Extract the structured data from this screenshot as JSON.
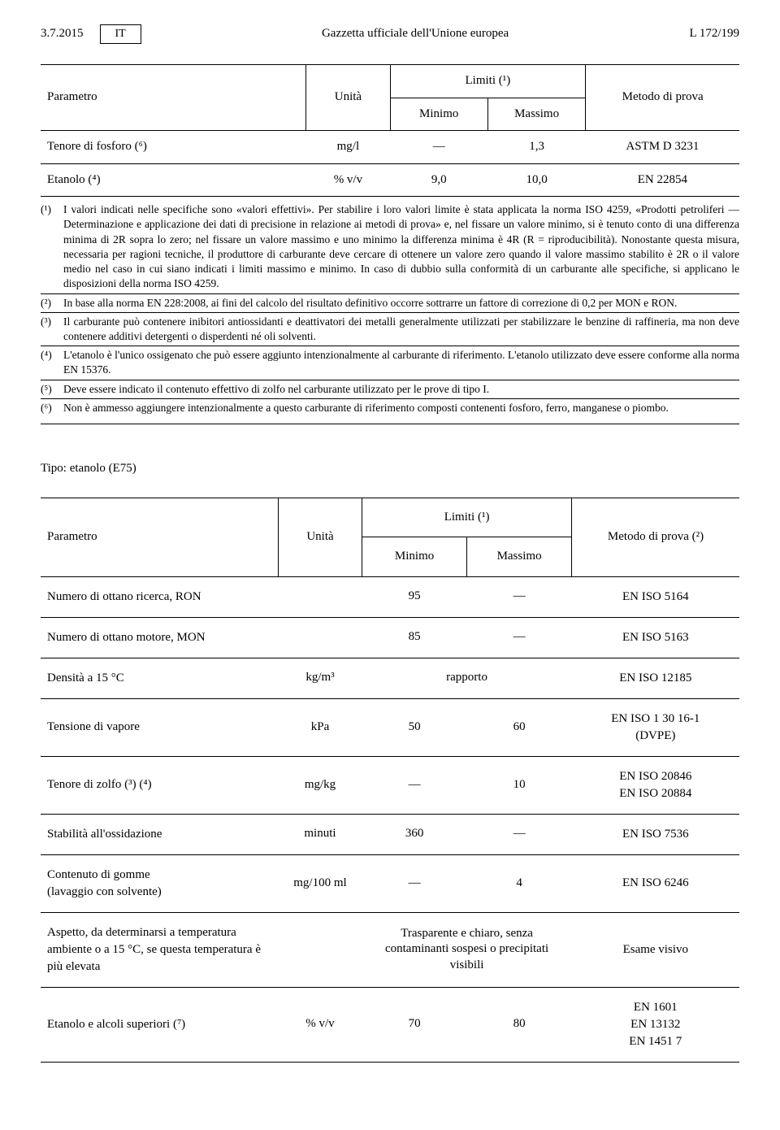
{
  "header": {
    "date": "3.7.2015",
    "lang": "IT",
    "title": "Gazzetta ufficiale dell'Unione europea",
    "page": "L 172/199"
  },
  "table1": {
    "headers": {
      "param": "Parametro",
      "unit": "Unità",
      "limits": "Limiti (¹)",
      "min": "Minimo",
      "max": "Massimo",
      "method": "Metodo di prova"
    },
    "rows": [
      {
        "param": "Tenore di fosforo (⁶)",
        "unit": "mg/l",
        "min": "—",
        "max": "1,3",
        "method": "ASTM D 3231"
      },
      {
        "param": "Etanolo (⁴)",
        "unit": "% v/v",
        "min": "9,0",
        "max": "10,0",
        "method": "EN 22854"
      }
    ]
  },
  "footnotes": [
    {
      "marker": "(¹)",
      "text": "I valori indicati nelle specifiche sono «valori effettivi». Per stabilire i loro valori limite è stata applicata la norma ISO 4259, «Prodotti petroliferi — Determinazione e applicazione dei dati di precisione in relazione ai metodi di prova» e, nel fissare un valore minimo, si è tenuto conto di una differenza minima di 2R sopra lo zero; nel fissare un valore massimo e uno minimo la differenza minima è 4R (R = riproducibilità). Nonostante questa misura, necessaria per ragioni tecniche, il produttore di carburante deve cercare di ottenere un valore zero quando il valore massimo stabilito è 2R o il valore medio nel caso in cui siano indicati i limiti massimo e minimo. In caso di dubbio sulla conformità di un carburante alle specifiche, si applicano le disposizioni della norma ISO 4259."
    },
    {
      "marker": "(²)",
      "text": "In base alla norma EN 228:2008, ai fini del calcolo del risultato definitivo occorre sottrarre un fattore di correzione di 0,2 per MON e RON."
    },
    {
      "marker": "(³)",
      "text": "Il carburante può contenere inibitori antiossidanti e deattivatori dei metalli generalmente utilizzati per stabilizzare le benzine di raffineria, ma non deve contenere additivi detergenti o disperdenti né oli solventi."
    },
    {
      "marker": "(⁴)",
      "text": "L'etanolo è l'unico ossigenato che può essere aggiunto intenzionalmente al carburante di riferimento. L'etanolo utilizzato deve essere conforme alla norma EN 15376."
    },
    {
      "marker": "(⁵)",
      "text": "Deve essere indicato il contenuto effettivo di zolfo nel carburante utilizzato per le prove di tipo I."
    },
    {
      "marker": "(⁶)",
      "text": "Non è ammesso aggiungere intenzionalmente a questo carburante di riferimento composti contenenti fosforo, ferro, manganese o piombo."
    }
  ],
  "section2": {
    "title": "Tipo: etanolo (E75)"
  },
  "table2": {
    "headers": {
      "param": "Parametro",
      "unit": "Unità",
      "limits": "Limiti (¹)",
      "min": "Minimo",
      "max": "Massimo",
      "method": "Metodo di prova (²)"
    },
    "rows": [
      {
        "param": "Numero di ottano ricerca, RON",
        "unit": "",
        "min": "95",
        "max": "—",
        "method": "EN ISO 5164"
      },
      {
        "param": "Numero di ottano motore, MON",
        "unit": "",
        "min": "85",
        "max": "—",
        "method": "EN ISO 5163"
      },
      {
        "param": "Densità a 15 °C",
        "unit": "kg/m³",
        "span": "rapporto",
        "method": "EN ISO 12185"
      },
      {
        "param": "Tensione di vapore",
        "unit": "kPa",
        "min": "50",
        "max": "60",
        "method": "EN ISO 1 30 16-1\n(DVPE)"
      },
      {
        "param": "Tenore di zolfo (³) (⁴)",
        "unit": "mg/kg",
        "min": "—",
        "max": "10",
        "method": "EN ISO 20846\nEN ISO 20884"
      },
      {
        "param": "Stabilità all'ossidazione",
        "unit": "minuti",
        "min": "360",
        "max": "—",
        "method": "EN ISO 7536"
      },
      {
        "param": "Contenuto di gomme\n(lavaggio con solvente)",
        "unit": "mg/100 ml",
        "min": "—",
        "max": "4",
        "method": "EN ISO 6246"
      },
      {
        "param": "Aspetto, da determinarsi a temperatura ambiente o a 15 °C, se questa temperatura è più elevata",
        "unit": "",
        "span": "Trasparente e chiaro, senza contaminanti sospesi o precipitati visibili",
        "method": "Esame visivo"
      },
      {
        "param": "Etanolo e alcoli superiori (⁷)",
        "unit": "% v/v",
        "min": "70",
        "max": "80",
        "method": "EN 1601\nEN 13132\nEN 1451 7"
      }
    ]
  }
}
